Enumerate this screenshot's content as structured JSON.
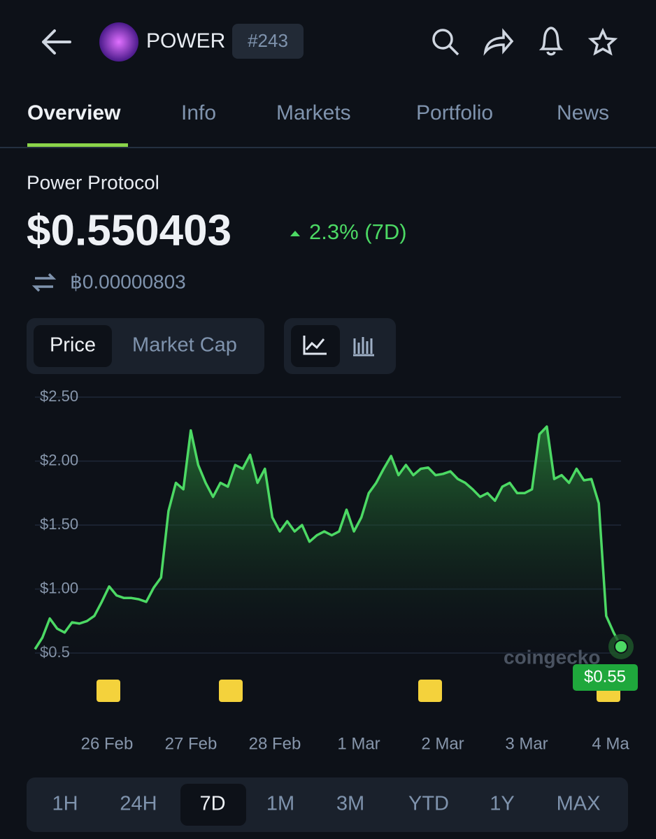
{
  "header": {
    "ticker": "POWER",
    "rank": "#243"
  },
  "tabs": [
    "Overview",
    "Info",
    "Markets",
    "Portfolio",
    "News"
  ],
  "coin_name": "Power Protocol",
  "price": "$0.550403",
  "change": "2.3% (7D)",
  "btc_price": "฿0.00000803",
  "chart_toggle": [
    "Price",
    "Market Cap"
  ],
  "chart_data": {
    "type": "line",
    "series": [
      {
        "color": "#4cd964",
        "values": [
          0.53,
          0.62,
          0.77,
          0.69,
          0.66,
          0.74,
          0.73,
          0.75,
          0.79,
          0.9,
          1.02,
          0.95,
          0.93,
          0.93,
          0.92,
          0.9,
          1.01,
          1.09,
          1.61,
          1.83,
          1.78,
          2.24,
          1.97,
          1.83,
          1.72,
          1.83,
          1.8,
          1.97,
          1.94,
          2.05,
          1.83,
          1.94,
          1.56,
          1.45,
          1.53,
          1.45,
          1.5,
          1.37,
          1.42,
          1.45,
          1.42,
          1.45,
          1.62,
          1.45,
          1.56,
          1.75,
          1.83,
          1.94,
          2.04,
          1.89,
          1.97,
          1.89,
          1.94,
          1.95,
          1.89,
          1.9,
          1.92,
          1.86,
          1.83,
          1.78,
          1.72,
          1.75,
          1.69,
          1.8,
          1.83,
          1.75,
          1.75,
          1.78,
          2.21,
          2.27,
          1.86,
          1.89,
          1.83,
          1.94,
          1.85,
          1.86,
          1.67,
          0.79,
          0.66,
          0.55
        ]
      }
    ],
    "ylim": [
      0.5,
      2.5
    ],
    "yticks": [
      {
        "value": 0.5,
        "label": "$0.5"
      },
      {
        "value": 1,
        "label": "$1.00"
      },
      {
        "value": 1.5,
        "label": "$1.50"
      },
      {
        "value": 2,
        "label": "$2.00"
      },
      {
        "value": 2.5,
        "label": "$2.50"
      }
    ],
    "xticks": [
      "26 Feb",
      "27 Feb",
      "28 Feb",
      "1 Mar",
      "2 Mar",
      "3 Mar",
      "4 Ma"
    ],
    "end_value": 0.55,
    "end_value_label": "$0.55",
    "grid": true
  },
  "watermark": "coingecko",
  "ranges": [
    "1H",
    "24H",
    "7D",
    "1M",
    "3M",
    "YTD",
    "1Y",
    "MAX"
  ]
}
